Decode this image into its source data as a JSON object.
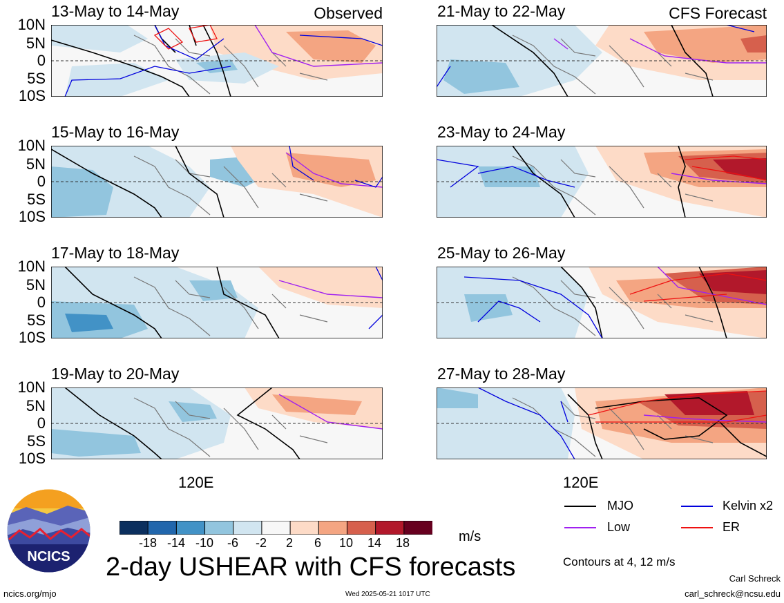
{
  "panels": {
    "left": [
      {
        "title": "13-May to 14-May",
        "tag": "Observed"
      },
      {
        "title": "15-May to 16-May",
        "tag": ""
      },
      {
        "title": "17-May to 18-May",
        "tag": ""
      },
      {
        "title": "19-May to 20-May",
        "tag": ""
      }
    ],
    "right": [
      {
        "title": "21-May to 22-May",
        "tag": "CFS Forecast"
      },
      {
        "title": "23-May to 24-May",
        "tag": ""
      },
      {
        "title": "25-May to 26-May",
        "tag": ""
      },
      {
        "title": "27-May to 28-May",
        "tag": ""
      }
    ]
  },
  "axes": {
    "lat_labels": [
      "10N",
      "5N",
      "0",
      "5S",
      "10S"
    ],
    "lon_label_left": "120E",
    "lon_label_right": "120E"
  },
  "colorbar": {
    "labels": [
      "-18",
      "-14",
      "-10",
      "-6",
      "-2",
      "2",
      "6",
      "10",
      "14",
      "18"
    ],
    "units": "m/s",
    "colors": [
      "#0b2f5e",
      "#2166ac",
      "#4292c6",
      "#92c5de",
      "#d1e5f0",
      "#f7f7f7",
      "#fddbc7",
      "#f4a582",
      "#d6604d",
      "#b2182b",
      "#67001f"
    ]
  },
  "legend": {
    "items": [
      {
        "label": "MJO",
        "color": "#000000"
      },
      {
        "label": "Kelvin x2",
        "color": "#0000dd"
      },
      {
        "label": "Low",
        "color": "#a020f0"
      },
      {
        "label": "ER",
        "color": "#ee1111"
      }
    ],
    "contours_note": "Contours at 4, 12 m/s"
  },
  "main_title": "2-day USHEAR with CFS forecasts",
  "logo": {
    "text": "NCICS"
  },
  "footer": {
    "site": "ncics.org/mjo",
    "timestamp": "Wed 2025-05-21 1017 UTC",
    "author": "Carl Schreck",
    "email": "carl_schreck@ncsu.edu"
  }
}
